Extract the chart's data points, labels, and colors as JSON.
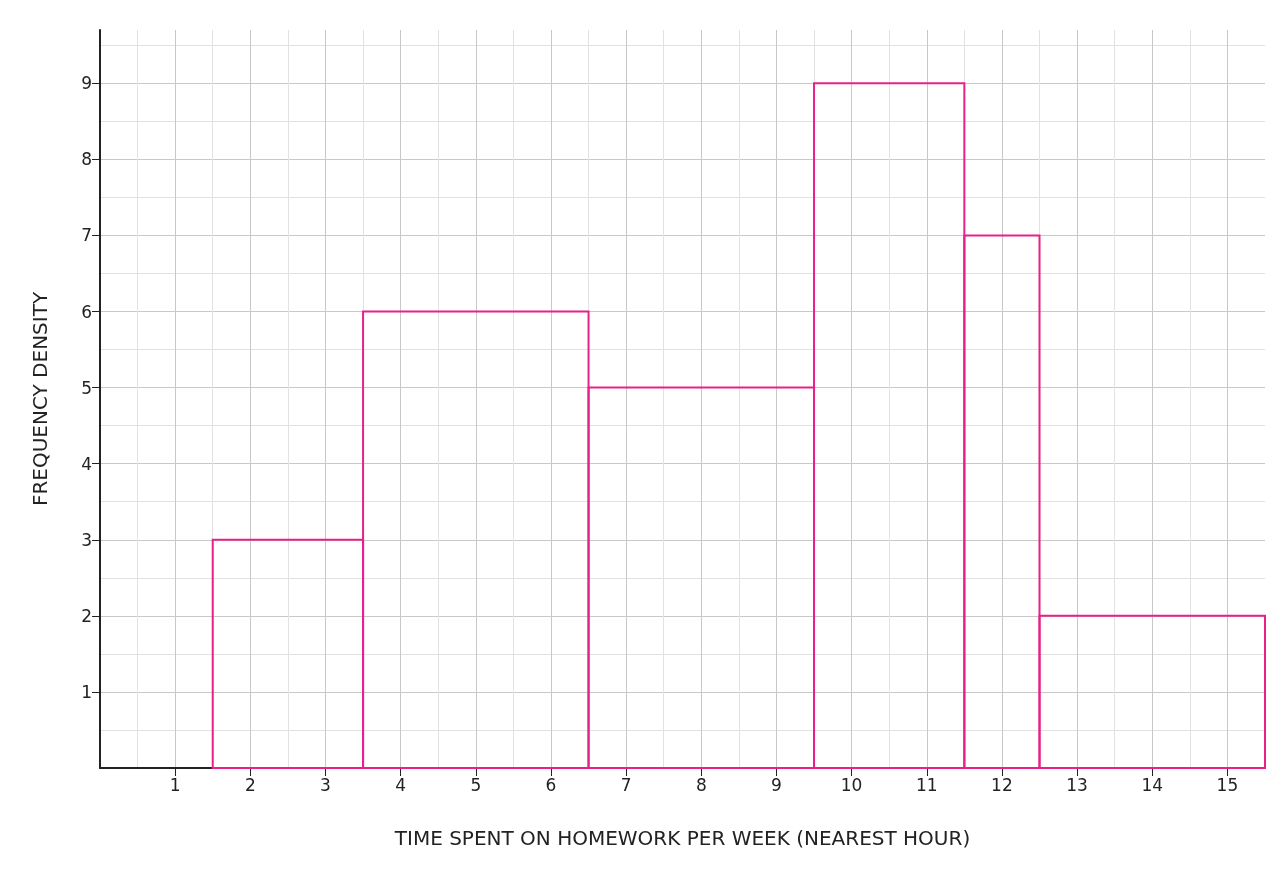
{
  "chart_data": {
    "type": "histogram",
    "xlabel": "TIME SPENT ON HOMEWORK PER WEEK (NEAREST HOUR)",
    "ylabel": "FREQUENCY DENSITY",
    "bins": [
      1.5,
      3.5,
      6.5,
      9.5,
      11.5,
      12.5,
      15.5
    ],
    "values": [
      3,
      6,
      5,
      9,
      7,
      2
    ],
    "color": "#e8208c",
    "xlim": [
      0,
      15.5
    ],
    "xticks": [
      1,
      2,
      3,
      4,
      5,
      6,
      7,
      8,
      9,
      10,
      11,
      12,
      13,
      14,
      15
    ],
    "ylim": [
      0,
      9.7
    ],
    "yticks": [
      1,
      2,
      3,
      4,
      5,
      6,
      7,
      8,
      9
    ],
    "grid": true
  }
}
